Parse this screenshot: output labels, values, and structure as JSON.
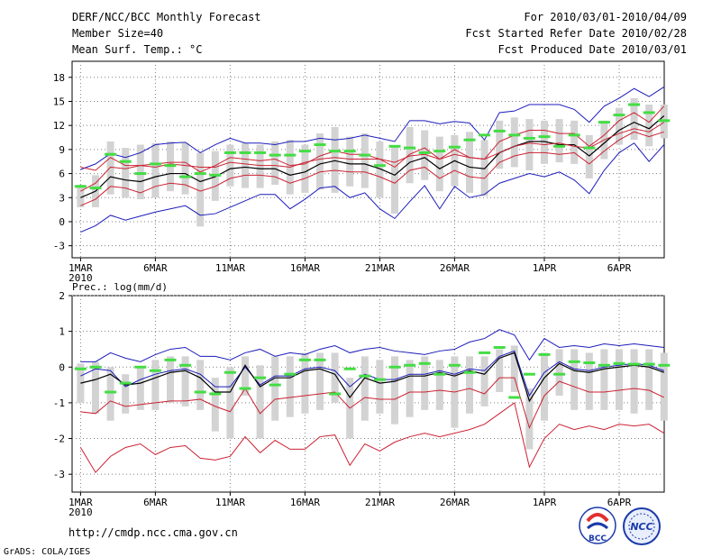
{
  "header": {
    "title": "DERF/NCC/BCC Monthly Forecast",
    "members": "Member Size=40",
    "variable": "Mean Surf. Temp.: °C",
    "period": "For 2010/03/01-2010/04/09",
    "started": "Fcst Started Refer Date 2010/02/28",
    "produced": "Fcst Produced Date 2010/03/01"
  },
  "footer": {
    "url": "http://cmdp.ncc.cma.gov.cn",
    "credit": "GrADS: COLA/IGES",
    "logo_left": "BCC",
    "logo_right": "NCC"
  },
  "colors": {
    "frame": "#000000",
    "grid": "#808080",
    "bar": "#d3d3d3",
    "obs": "#44dd44",
    "mean": "#000000",
    "spread": "#cc2233",
    "extreme": "#1c1cbb"
  },
  "chart_data": [
    {
      "type": "line",
      "title": "Mean Surf. Temp.: °C",
      "ylabel": "°C",
      "ylim": [
        -4.5,
        20
      ],
      "yticks": [
        -3,
        0,
        3,
        6,
        9,
        12,
        15,
        18
      ],
      "xtick_labels": [
        "1MAR",
        "6MAR",
        "11MAR",
        "16MAR",
        "21MAR",
        "26MAR",
        "1APR",
        "6APR"
      ],
      "xtick_days": [
        1,
        6,
        11,
        16,
        21,
        26,
        32,
        37
      ],
      "x_sub_label": "2010",
      "x": [
        1,
        2,
        3,
        4,
        5,
        6,
        7,
        8,
        9,
        10,
        11,
        12,
        13,
        14,
        15,
        16,
        17,
        18,
        19,
        20,
        21,
        22,
        23,
        24,
        25,
        26,
        27,
        28,
        29,
        30,
        31,
        32,
        33,
        34,
        35,
        36,
        37,
        38,
        39,
        40
      ],
      "series": [
        {
          "name": "max",
          "values": [
            -1.3,
            -0.5,
            0.8,
            0.2,
            0.7,
            1.2,
            1.6,
            2.0,
            0.8,
            1.0,
            1.8,
            2.6,
            3.4,
            3.4,
            1.6,
            2.8,
            4.2,
            4.4,
            3.0,
            3.6,
            1.6,
            0.4,
            2.5,
            4.5,
            1.6,
            4.4,
            3.0,
            3.4,
            4.8,
            5.4,
            6.0,
            5.6,
            6.2,
            5.2,
            3.5,
            6.4,
            8.6,
            9.8,
            7.5,
            9.6
          ]
        },
        {
          "name": "upper",
          "values": [
            6.5,
            7.2,
            8.5,
            8.0,
            8.6,
            9.6,
            9.8,
            9.9,
            8.6,
            9.6,
            10.4,
            9.8,
            9.8,
            9.6,
            10.0,
            10.0,
            10.4,
            10.2,
            10.4,
            10.8,
            10.4,
            10.0,
            12.6,
            12.6,
            12.2,
            12.5,
            12.3,
            10.2,
            13.6,
            13.8,
            14.6,
            14.6,
            14.6,
            14.0,
            12.4,
            14.4,
            15.4,
            16.6,
            15.6,
            16.8
          ]
        },
        {
          "name": "spread_hi",
          "values": [
            3.8,
            4.8,
            6.8,
            6.6,
            7.0,
            7.2,
            7.4,
            7.4,
            6.2,
            7.0,
            8.0,
            7.8,
            7.6,
            7.8,
            7.0,
            7.2,
            8.2,
            8.8,
            8.4,
            8.4,
            7.8,
            6.8,
            8.4,
            9.2,
            7.8,
            9.0,
            8.0,
            7.8,
            10.0,
            10.8,
            11.4,
            11.4,
            11.0,
            11.0,
            9.4,
            10.8,
            12.6,
            13.6,
            12.4,
            14.4
          ]
        },
        {
          "name": "mean",
          "values": [
            3.0,
            3.8,
            5.6,
            5.2,
            5.0,
            5.6,
            6.0,
            6.0,
            5.0,
            5.6,
            6.6,
            6.8,
            6.6,
            6.6,
            5.8,
            6.2,
            7.2,
            7.6,
            7.2,
            7.2,
            6.6,
            5.8,
            7.4,
            8.0,
            6.6,
            7.6,
            6.8,
            6.6,
            8.6,
            9.4,
            10.0,
            10.0,
            9.6,
            9.6,
            8.2,
            9.8,
            11.4,
            12.4,
            11.6,
            13.2
          ]
        },
        {
          "name": "spread_lo",
          "values": [
            2.0,
            2.8,
            4.4,
            4.2,
            3.6,
            4.4,
            4.8,
            4.6,
            3.8,
            4.4,
            5.4,
            5.8,
            5.8,
            5.6,
            4.8,
            5.4,
            6.2,
            6.4,
            6.2,
            6.2,
            5.6,
            4.8,
            6.4,
            6.8,
            5.4,
            6.4,
            5.6,
            5.4,
            7.4,
            8.2,
            8.6,
            8.6,
            8.4,
            8.6,
            7.2,
            8.8,
            10.2,
            11.2,
            10.6,
            11.2
          ]
        },
        {
          "name": "min",
          "values": [
            6.8,
            6.4,
            8.0,
            7.0,
            7.0,
            6.8,
            7.2,
            7.0,
            6.8,
            6.8,
            7.4,
            7.2,
            7.0,
            7.0,
            6.8,
            7.4,
            7.8,
            8.0,
            7.8,
            7.8,
            7.8,
            7.4,
            8.2,
            8.4,
            7.8,
            8.4,
            8.0,
            7.8,
            8.6,
            9.4,
            9.8,
            9.6,
            9.8,
            9.4,
            9.2,
            10.2,
            11.0,
            11.6,
            11.2,
            12.4
          ]
        }
      ],
      "bars_low": [
        1.8,
        1.8,
        3.4,
        3.0,
        2.8,
        3.0,
        3.8,
        3.4,
        -0.6,
        2.6,
        4.4,
        4.2,
        4.2,
        4.6,
        3.4,
        3.6,
        4.0,
        3.6,
        4.4,
        4.2,
        3.0,
        1.0,
        4.8,
        5.2,
        3.8,
        4.4,
        3.6,
        3.2,
        6.6,
        6.8,
        6.4,
        7.2,
        7.4,
        7.2,
        5.4,
        7.8,
        9.6,
        10.2,
        9.4,
        10.4
      ],
      "bars_high": [
        4.6,
        5.8,
        10.0,
        9.2,
        9.6,
        9.8,
        10.0,
        9.8,
        8.6,
        8.8,
        9.6,
        9.8,
        9.6,
        10.0,
        10.2,
        9.6,
        11.0,
        11.8,
        10.6,
        11.0,
        10.0,
        9.4,
        11.8,
        11.4,
        10.6,
        10.8,
        11.2,
        10.2,
        12.6,
        13.0,
        12.8,
        12.6,
        12.8,
        12.6,
        10.8,
        12.6,
        14.2,
        15.4,
        14.6,
        14.6
      ],
      "observed": [
        4.4,
        4.2,
        8.4,
        7.5,
        6.0,
        7.2,
        7.0,
        5.6,
        6.0,
        5.8,
        8.6,
        8.6,
        8.6,
        8.3,
        8.3,
        8.8,
        9.6,
        8.8,
        8.8,
        8.3,
        7.0,
        9.4,
        9.2,
        8.6,
        8.8,
        9.3,
        10.2,
        10.8,
        11.3,
        10.8,
        10.4,
        10.6,
        9.4,
        10.8,
        9.2,
        12.4,
        13.3,
        14.6,
        13.6,
        12.6
      ]
    },
    {
      "type": "line",
      "title": "Prec.: log(mm/d)",
      "ylabel": "log(mm/d)",
      "ylim": [
        -3.5,
        2
      ],
      "yticks": [
        -3,
        -2,
        -1,
        0,
        1,
        2
      ],
      "xtick_labels": [
        "1MAR",
        "6MAR",
        "11MAR",
        "16MAR",
        "21MAR",
        "26MAR",
        "1APR",
        "6APR"
      ],
      "xtick_days": [
        1,
        6,
        11,
        16,
        21,
        26,
        32,
        37
      ],
      "x_sub_label": "2010",
      "x": [
        1,
        2,
        3,
        4,
        5,
        6,
        7,
        8,
        9,
        10,
        11,
        12,
        13,
        14,
        15,
        16,
        17,
        18,
        19,
        20,
        21,
        22,
        23,
        24,
        25,
        26,
        27,
        28,
        29,
        30,
        31,
        32,
        33,
        34,
        35,
        36,
        37,
        38,
        39,
        40
      ],
      "series": [
        {
          "name": "max",
          "values": [
            0.15,
            0.15,
            0.4,
            0.25,
            0.15,
            0.35,
            0.5,
            0.55,
            0.3,
            0.3,
            0.2,
            0.4,
            0.5,
            0.3,
            0.4,
            0.35,
            0.5,
            0.6,
            0.4,
            0.5,
            0.55,
            0.45,
            0.4,
            0.35,
            0.45,
            0.5,
            0.7,
            0.8,
            1.05,
            0.9,
            0.2,
            0.8,
            0.55,
            0.6,
            0.55,
            0.65,
            0.6,
            0.65,
            0.6,
            0.55
          ]
        },
        {
          "name": "upper",
          "values": [
            -0.25,
            -0.05,
            -0.1,
            -0.55,
            -0.35,
            -0.2,
            -0.1,
            -0.05,
            -0.2,
            -0.55,
            -0.55,
            0.0,
            -0.5,
            -0.25,
            -0.25,
            -0.05,
            0.0,
            -0.1,
            -0.55,
            -0.2,
            -0.35,
            -0.35,
            -0.2,
            -0.2,
            -0.1,
            -0.2,
            -0.05,
            -0.1,
            0.3,
            0.45,
            -0.8,
            -0.15,
            0.15,
            -0.05,
            -0.1,
            0.0,
            0.05,
            0.1,
            0.05,
            -0.1
          ]
        },
        {
          "name": "mean",
          "values": [
            -0.45,
            -0.35,
            -0.2,
            -0.5,
            -0.45,
            -0.3,
            -0.15,
            -0.1,
            -0.3,
            -0.7,
            -0.7,
            0.05,
            -0.55,
            -0.3,
            -0.3,
            -0.1,
            -0.05,
            -0.2,
            -0.85,
            -0.3,
            -0.45,
            -0.4,
            -0.25,
            -0.25,
            -0.15,
            -0.25,
            -0.1,
            -0.2,
            0.25,
            0.4,
            -0.95,
            -0.3,
            0.1,
            -0.1,
            -0.15,
            -0.05,
            0.0,
            0.05,
            0.0,
            -0.15
          ]
        },
        {
          "name": "spread_lo",
          "values": [
            -1.25,
            -1.3,
            -0.95,
            -1.1,
            -1.05,
            -1.0,
            -0.95,
            -0.95,
            -0.9,
            -1.1,
            -1.25,
            -0.6,
            -1.3,
            -0.9,
            -0.85,
            -0.8,
            -0.75,
            -0.7,
            -1.15,
            -0.85,
            -0.9,
            -0.9,
            -0.7,
            -0.7,
            -0.65,
            -0.7,
            -0.6,
            -0.75,
            -0.3,
            -0.3,
            -1.7,
            -0.8,
            -0.4,
            -0.55,
            -0.7,
            -0.7,
            -0.65,
            -0.6,
            -0.65,
            -0.85
          ]
        },
        {
          "name": "min",
          "values": [
            -2.25,
            -2.95,
            -2.5,
            -2.25,
            -2.15,
            -2.45,
            -2.25,
            -2.2,
            -2.55,
            -2.6,
            -2.5,
            -1.95,
            -2.4,
            -2.05,
            -2.3,
            -2.3,
            -1.95,
            -1.9,
            -2.75,
            -2.15,
            -2.35,
            -2.1,
            -1.95,
            -1.85,
            -1.95,
            -1.85,
            -1.75,
            -1.6,
            -1.3,
            -1.0,
            -2.8,
            -2.0,
            -1.6,
            -1.75,
            -1.65,
            -1.75,
            -1.6,
            -1.65,
            -1.6,
            -1.85
          ]
        }
      ],
      "bars_low": [
        -1.0,
        -1.3,
        -1.5,
        -1.3,
        -1.2,
        -1.2,
        -1.0,
        -1.1,
        -1.2,
        -1.8,
        -2.0,
        -0.8,
        -2.0,
        -1.5,
        -1.4,
        -1.3,
        -1.2,
        -1.0,
        -2.0,
        -1.5,
        -1.3,
        -1.6,
        -1.4,
        -1.2,
        -1.2,
        -1.7,
        -1.3,
        -1.1,
        -0.7,
        -0.7,
        -2.3,
        -1.5,
        -0.8,
        -1.2,
        -1.2,
        -1.2,
        -1.2,
        -1.3,
        -1.2,
        -1.5
      ],
      "bars_high": [
        0.1,
        0.15,
        0.0,
        -0.2,
        0.0,
        0.2,
        0.3,
        0.3,
        0.2,
        -0.3,
        0.0,
        0.3,
        0.05,
        0.3,
        0.3,
        0.4,
        0.4,
        0.4,
        -0.3,
        0.3,
        0.2,
        0.3,
        0.2,
        0.3,
        0.2,
        0.3,
        0.3,
        0.3,
        0.5,
        0.6,
        -0.6,
        0.4,
        0.5,
        0.5,
        0.4,
        0.5,
        0.5,
        0.5,
        0.5,
        0.4
      ],
      "observed": [
        -0.05,
        0.0,
        -0.7,
        -0.45,
        0.0,
        -0.1,
        0.2,
        0.05,
        -0.7,
        -0.75,
        -0.15,
        -0.6,
        -0.3,
        -0.5,
        -0.2,
        0.2,
        0.2,
        -0.75,
        -0.05,
        -0.25,
        -0.35,
        0.0,
        0.05,
        0.1,
        -0.2,
        0.05,
        -0.15,
        0.4,
        0.55,
        -0.85,
        -0.2,
        0.35,
        -0.2,
        0.15,
        0.12,
        0.05,
        0.1,
        0.08,
        0.08,
        0.05
      ]
    }
  ]
}
